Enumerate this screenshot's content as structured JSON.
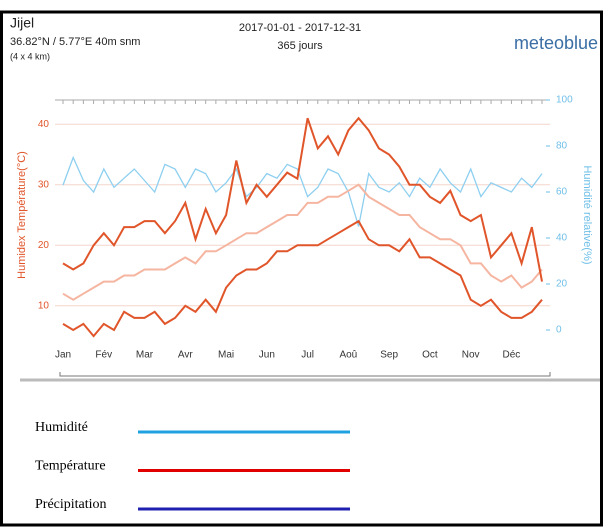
{
  "chart_data": {
    "type": "line",
    "location": "Jijel",
    "coordinates": "36.82°N / 5.77°E  40m snm",
    "resolution": "(4 x 4 km)",
    "title": "2017-01-01 - 2017-12-31",
    "subtitle": "365 jours",
    "brand": "meteoblue",
    "ylabel": "Humidex Température(°C)",
    "y2label": "Humidité relative(%)",
    "categories": [
      "Jan",
      null,
      null,
      null,
      "Fév",
      null,
      null,
      null,
      "Mar",
      null,
      null,
      null,
      "Avr",
      null,
      null,
      null,
      "Mai",
      null,
      null,
      null,
      "Jun",
      null,
      null,
      null,
      "Jul",
      null,
      null,
      null,
      "Aoû",
      null,
      null,
      null,
      "Sep",
      null,
      null,
      null,
      "Oct",
      null,
      null,
      null,
      "Nov",
      null,
      null,
      null,
      "Déc",
      null,
      null,
      null
    ],
    "series": [
      {
        "color": "#8ecff0",
        "axis": "y2",
        "values": [
          63,
          75,
          65,
          60,
          70,
          62,
          66,
          70,
          65,
          60,
          72,
          70,
          62,
          70,
          68,
          60,
          64,
          70,
          58,
          62,
          68,
          66,
          72,
          70,
          58,
          62,
          70,
          68,
          60,
          45,
          68,
          62,
          60,
          64,
          58,
          66,
          62,
          70,
          64,
          60,
          70,
          58,
          64,
          62,
          60,
          66,
          62,
          68
        ]
      },
      {
        "color": "#f5b5a0",
        "values": [
          12,
          11,
          12,
          13,
          14,
          14,
          15,
          15,
          16,
          16,
          16,
          17,
          18,
          17,
          19,
          19,
          20,
          21,
          22,
          22,
          23,
          24,
          25,
          25,
          27,
          27,
          28,
          28,
          29,
          30,
          28,
          27,
          26,
          25,
          25,
          23,
          22,
          21,
          21,
          20,
          17,
          17,
          15,
          14,
          15,
          13,
          14,
          16
        ]
      },
      {
        "color": "#e0552a",
        "values": [
          17,
          16,
          17,
          20,
          22,
          20,
          23,
          23,
          24,
          24,
          22,
          24,
          27,
          21,
          26,
          22,
          25,
          34,
          27,
          30,
          28,
          30,
          32,
          31,
          41,
          36,
          38,
          35,
          39,
          41,
          39,
          36,
          35,
          33,
          30,
          30,
          28,
          27,
          29,
          25,
          24,
          25,
          18,
          20,
          22,
          17,
          23,
          14
        ]
      },
      {
        "color": "#e0552a",
        "values": [
          7,
          6,
          7,
          5,
          7,
          6,
          9,
          8,
          8,
          9,
          7,
          8,
          10,
          9,
          11,
          9,
          13,
          15,
          16,
          16,
          17,
          19,
          19,
          20,
          20,
          20,
          21,
          22,
          23,
          24,
          21,
          20,
          20,
          19,
          21,
          18,
          18,
          17,
          16,
          15,
          11,
          10,
          11,
          9,
          8,
          8,
          9,
          11
        ]
      }
    ],
    "ylim": [
      6,
      44
    ],
    "yticks": [
      10,
      20,
      30,
      40
    ],
    "y2lim": [
      0,
      100
    ],
    "y2ticks": [
      0,
      20,
      40,
      60,
      80,
      100
    ],
    "grid": true
  },
  "legend": [
    {
      "label": "Humidité",
      "color": "#1fa0e0"
    },
    {
      "label": "Température",
      "color": "#e00000"
    },
    {
      "label": "Précipitation",
      "color": "#2020b0"
    }
  ]
}
